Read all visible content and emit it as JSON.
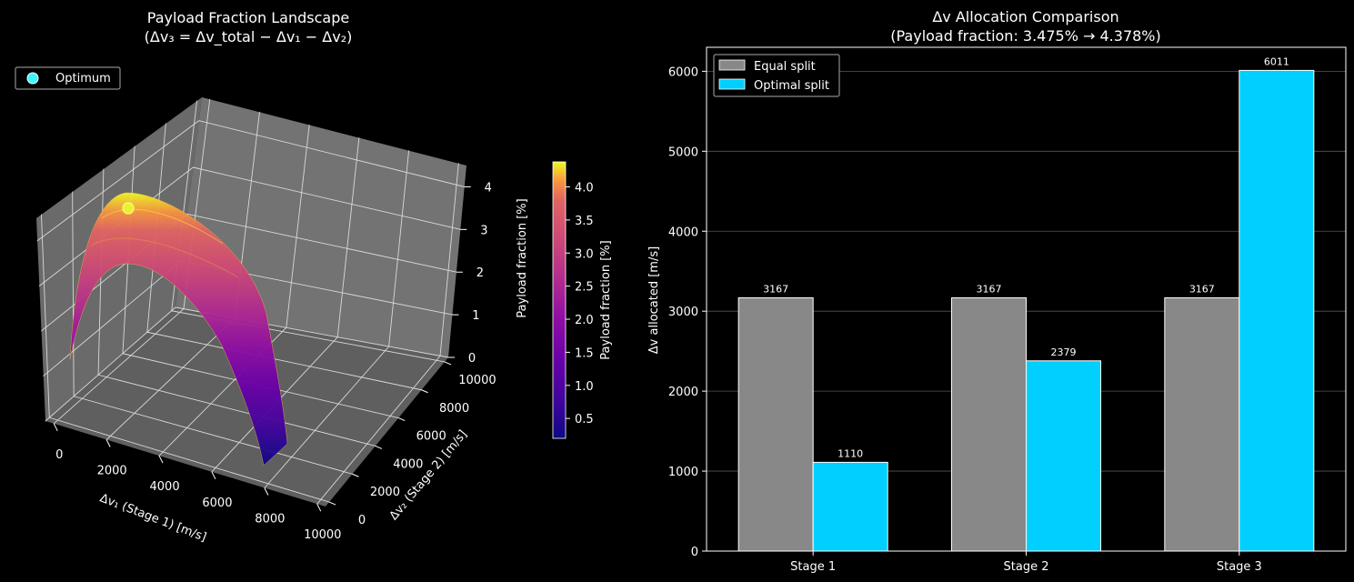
{
  "colors": {
    "background": "#000000",
    "pane": "#6e6e6e",
    "grid": "#d9d9d9",
    "equal": "#888888",
    "optimal": "#00cfff",
    "optimum_marker": "#3ff4ff",
    "colormap": "plasma"
  },
  "chart_data": [
    {
      "type": "surface",
      "title": "Payload Fraction Landscape",
      "subtitle": "(Δv₃ = Δv_total − Δv₁ − Δv₂)",
      "xlabel": "Δv₁ (Stage 1) [m/s]",
      "ylabel": "Δv₂ (Stage 2) [m/s]",
      "zlabel": "Payload fraction [%]",
      "xlim": [
        0,
        10000
      ],
      "ylim": [
        0,
        10000
      ],
      "zlim": [
        0,
        4.5
      ],
      "x_ticks": [
        "0",
        "2000",
        "4000",
        "6000",
        "8000",
        "10000"
      ],
      "y_ticks": [
        "0",
        "2000",
        "4000",
        "6000",
        "8000",
        "10000"
      ],
      "z_ticks": [
        "0",
        "1",
        "2",
        "3",
        "4"
      ],
      "optimum": {
        "label": "Optimum",
        "x": 1110,
        "y": 2379,
        "z": 4.378
      },
      "legend_position": "upper-left",
      "colorbar": {
        "label": "Payload fraction [%]",
        "ticks": [
          "0.5",
          "1.0",
          "1.5",
          "2.0",
          "2.5",
          "3.0",
          "3.5",
          "4.0"
        ],
        "range": [
          0.2,
          4.378
        ]
      }
    },
    {
      "type": "bar",
      "title": "Δv Allocation Comparison",
      "subtitle": "(Payload fraction: 3.475% → 4.378%)",
      "xlabel": "",
      "ylabel": "Δv allocated [m/s]",
      "categories": [
        "Stage 1",
        "Stage 2",
        "Stage 3"
      ],
      "series": [
        {
          "name": "Equal split",
          "values": [
            3167,
            3167,
            3167
          ]
        },
        {
          "name": "Optimal split",
          "values": [
            1110,
            2379,
            6011
          ]
        }
      ],
      "ylim": [
        0,
        6300
      ],
      "y_ticks": [
        "0",
        "1000",
        "2000",
        "3000",
        "4000",
        "5000",
        "6000"
      ],
      "grid": true,
      "legend_position": "upper-left"
    }
  ]
}
